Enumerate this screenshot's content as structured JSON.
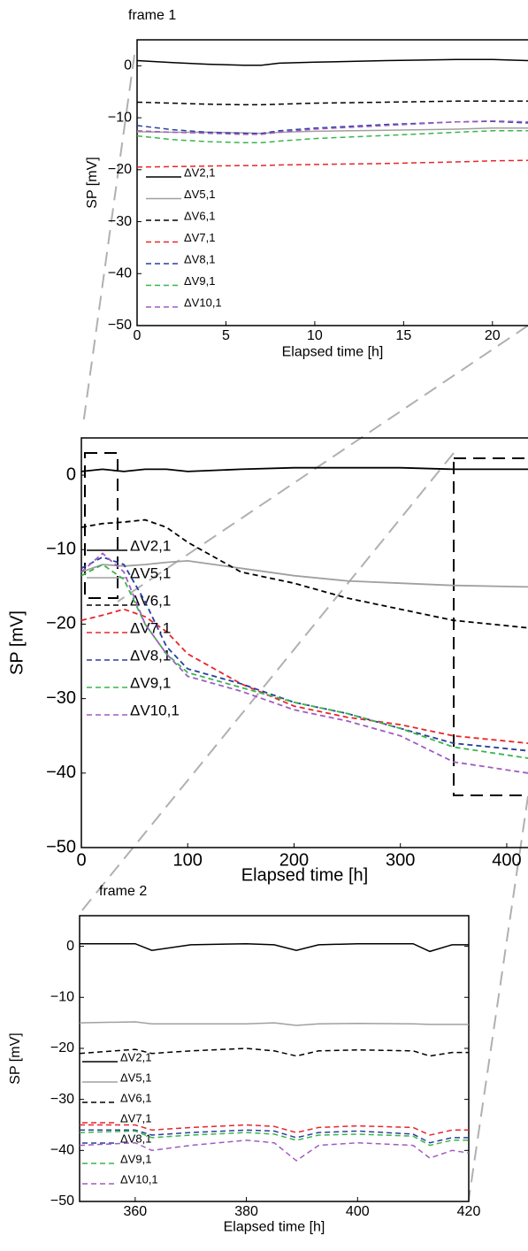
{
  "chart_data": [
    {
      "type": "line",
      "title": "frame 1",
      "x_label": "Elapsed time [h]",
      "y_label": "SP [mV]",
      "x": [
        0,
        2,
        4,
        6,
        7,
        8,
        10,
        14,
        18,
        20,
        22
      ],
      "xlim": [
        0,
        22
      ],
      "xticks": [
        0,
        5,
        10,
        15,
        20
      ],
      "ylim": [
        -50,
        5
      ],
      "yticks": [
        0,
        {
          "value": -10,
          "label": "−10"
        },
        {
          "value": -20,
          "label": "−20"
        },
        {
          "value": -30,
          "label": "−30"
        },
        {
          "value": -40,
          "label": "−40"
        },
        {
          "value": -50,
          "label": "−50"
        }
      ],
      "grid": false,
      "series": [
        {
          "name": "ΔV2,1",
          "color": "#000000",
          "dashed": false,
          "values": [
            1,
            0.6,
            0.3,
            0.1,
            0.1,
            0.5,
            0.7,
            1,
            1.2,
            1.2,
            1
          ]
        },
        {
          "name": "ΔV5,1",
          "color": "#a0a0a0",
          "dashed": false,
          "values": [
            -12.7,
            -12.8,
            -12.8,
            -12.9,
            -13,
            -12.8,
            -12.6,
            -12.4,
            -12.2,
            -12,
            -12
          ]
        },
        {
          "name": "ΔV6,1",
          "color": "#000000",
          "dashed": true,
          "values": [
            -7,
            -7.2,
            -7.4,
            -7.5,
            -7.5,
            -7.4,
            -7.2,
            -7,
            -6.8,
            -6.8,
            -6.8
          ]
        },
        {
          "name": "ΔV7,1",
          "color": "#e8262a",
          "dashed": true,
          "values": [
            -19.5,
            -19.4,
            -19.3,
            -19.2,
            -19.2,
            -19.1,
            -19,
            -18.8,
            -18.5,
            -18.3,
            -18.2
          ]
        },
        {
          "name": "ΔV8,1",
          "color": "#2a3f9e",
          "dashed": true,
          "values": [
            -11.5,
            -12.3,
            -12.8,
            -13,
            -13,
            -12.5,
            -12,
            -11.3,
            -10.8,
            -10.7,
            -11
          ]
        },
        {
          "name": "ΔV9,1",
          "color": "#39b54a",
          "dashed": true,
          "values": [
            -13.5,
            -14.2,
            -14.6,
            -14.8,
            -14.8,
            -14.5,
            -14,
            -13.4,
            -12.8,
            -12.5,
            -12.5
          ]
        },
        {
          "name": "ΔV10,1",
          "color": "#a05cc0",
          "dashed": true,
          "values": [
            -12.5,
            -12.8,
            -13,
            -13.2,
            -13.2,
            -12.8,
            -12.2,
            -11.5,
            -10.8,
            -10.6,
            -10.8
          ]
        }
      ]
    },
    {
      "type": "line",
      "x_label": "Elapsed time [h]",
      "y_label": "SP [mV]",
      "x": [
        0,
        20,
        40,
        60,
        80,
        100,
        150,
        200,
        250,
        300,
        350,
        420
      ],
      "xlim": [
        0,
        420
      ],
      "xticks": [
        0,
        100,
        200,
        300,
        400
      ],
      "ylim": [
        -50,
        5
      ],
      "yticks": [
        0,
        {
          "value": -10,
          "label": "−10"
        },
        {
          "value": -20,
          "label": "−20"
        },
        {
          "value": -30,
          "label": "−30"
        },
        {
          "value": -40,
          "label": "−40"
        },
        {
          "value": -50,
          "label": "−50"
        }
      ],
      "grid": false,
      "series": [
        {
          "name": "ΔV2,1",
          "color": "#000000",
          "dashed": false,
          "values": [
            0.5,
            0.8,
            0.5,
            0.8,
            0.8,
            0.5,
            0.8,
            1,
            1,
            1,
            0.8,
            0.8
          ]
        },
        {
          "name": "ΔV5,1",
          "color": "#a0a0a0",
          "dashed": false,
          "values": [
            -13,
            -12,
            -12.2,
            -12,
            -11.7,
            -11.5,
            -12.5,
            -13.5,
            -14.2,
            -14.5,
            -14.8,
            -15
          ]
        },
        {
          "name": "ΔV6,1",
          "color": "#000000",
          "dashed": true,
          "values": [
            -7,
            -6.5,
            -6.3,
            -6,
            -7,
            -9,
            -13,
            -14.5,
            -16.5,
            -18,
            -19.5,
            -20.5
          ]
        },
        {
          "name": "ΔV7,1",
          "color": "#e8262a",
          "dashed": true,
          "values": [
            -19.5,
            -18.8,
            -18,
            -19,
            -21,
            -24,
            -28,
            -31,
            -32.5,
            -33.5,
            -35,
            -36
          ]
        },
        {
          "name": "ΔV8,1",
          "color": "#2a3f9e",
          "dashed": true,
          "values": [
            -12.5,
            -11,
            -12,
            -17,
            -23,
            -26,
            -28,
            -30.5,
            -32,
            -34,
            -36,
            -37
          ]
        },
        {
          "name": "ΔV9,1",
          "color": "#39b54a",
          "dashed": true,
          "values": [
            -13.5,
            -12,
            -14,
            -20,
            -24,
            -26.5,
            -28.5,
            -30.5,
            -32,
            -34,
            -36.5,
            -38
          ]
        },
        {
          "name": "ΔV10,1",
          "color": "#a05cc0",
          "dashed": true,
          "values": [
            -13,
            -10.5,
            -13,
            -20,
            -24,
            -27,
            -29,
            -31.5,
            -33,
            -35,
            -38.5,
            -40
          ]
        }
      ]
    },
    {
      "type": "line",
      "title": "frame 2",
      "x_label": "Elapsed time [h]",
      "y_label": "SP [mV]",
      "x": [
        350,
        360,
        363,
        370,
        380,
        385,
        389,
        393,
        400,
        410,
        413,
        417,
        420
      ],
      "xlim": [
        350,
        420
      ],
      "xticks": [
        360,
        380,
        400,
        420
      ],
      "ylim": [
        -50,
        6
      ],
      "yticks": [
        0,
        {
          "value": -10,
          "label": "−10"
        },
        {
          "value": -20,
          "label": "−20"
        },
        {
          "value": -30,
          "label": "−30"
        },
        {
          "value": -40,
          "label": "−40"
        },
        {
          "value": -50,
          "label": "−50"
        }
      ],
      "grid": false,
      "series": [
        {
          "name": "ΔV2,1",
          "color": "#000000",
          "dashed": false,
          "values": [
            0.5,
            0.5,
            -0.8,
            0.3,
            0.5,
            0.3,
            -0.8,
            0.3,
            0.5,
            0.5,
            -1,
            0.3,
            0.3
          ]
        },
        {
          "name": "ΔV5,1",
          "color": "#a0a0a0",
          "dashed": false,
          "values": [
            -15,
            -14.8,
            -15.2,
            -15.2,
            -15.2,
            -15,
            -15.5,
            -15.2,
            -15.1,
            -15.2,
            -15.3,
            -15.3,
            -15.3
          ]
        },
        {
          "name": "ΔV6,1",
          "color": "#000000",
          "dashed": true,
          "values": [
            -21,
            -20.2,
            -21,
            -20.5,
            -20,
            -20.5,
            -21.5,
            -20.5,
            -20.3,
            -20.5,
            -21.5,
            -20.8,
            -20.8
          ]
        },
        {
          "name": "ΔV7,1",
          "color": "#e8262a",
          "dashed": true,
          "values": [
            -35,
            -35,
            -36,
            -35.5,
            -35,
            -35.3,
            -36.5,
            -35.5,
            -35.2,
            -35.5,
            -37,
            -36,
            -36
          ]
        },
        {
          "name": "ΔV8,1",
          "color": "#2a3f9e",
          "dashed": true,
          "values": [
            -36,
            -36,
            -37,
            -36.5,
            -36,
            -36.2,
            -37.5,
            -36.5,
            -36.2,
            -36.8,
            -38.5,
            -37.5,
            -37.5
          ]
        },
        {
          "name": "ΔV9,1",
          "color": "#39b54a",
          "dashed": true,
          "values": [
            -36.5,
            -36.2,
            -37.5,
            -37,
            -36.5,
            -36.8,
            -38,
            -37,
            -36.8,
            -37.2,
            -39,
            -38,
            -38
          ]
        },
        {
          "name": "ΔV10,1",
          "color": "#a05cc0",
          "dashed": true,
          "values": [
            -39,
            -38.5,
            -40,
            -39,
            -38,
            -38.5,
            -42,
            -39,
            -38.5,
            -39,
            -41.5,
            -40,
            -40.5
          ]
        }
      ]
    }
  ]
}
